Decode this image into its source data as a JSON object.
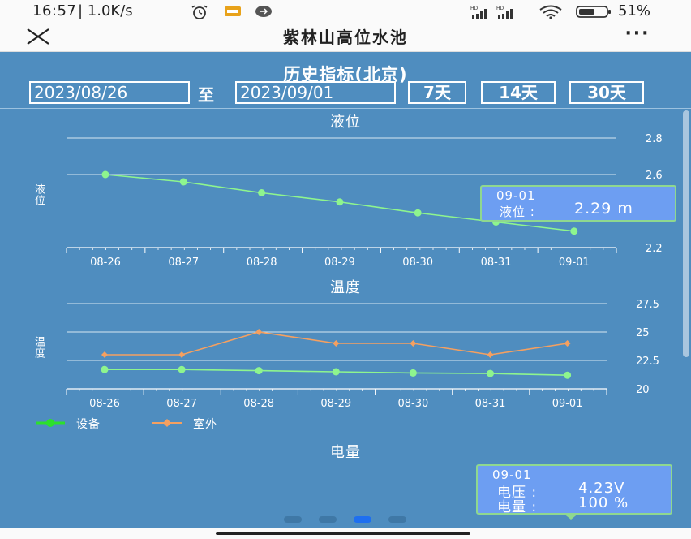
{
  "status_bar": {
    "time": "16:57",
    "net_speed": "| 1.0K/s",
    "battery_percent": "51%",
    "icons": [
      "alarm-icon",
      "notification-icon",
      "message-icon",
      "signal-hd-icon",
      "wifi-icon",
      "battery-icon"
    ],
    "hd1": "HD",
    "hd2": "HD"
  },
  "titlebar": {
    "title": "紫林山高位水池",
    "more_label": "···"
  },
  "history": {
    "title": "历史指标(北京)",
    "start_date": "2023/08/26",
    "separator": "至",
    "end_date": "2023/09/01",
    "range_buttons": [
      "7天",
      "14天",
      "30天"
    ]
  },
  "colors": {
    "background": "#4f8dbf",
    "device_series": "#8ef58e",
    "outdoor_series": "#f5a060",
    "tooltip_bg": "#6d9ef2",
    "tooltip_border": "#8fd88f",
    "active_dot": "#1e6ff0"
  },
  "chart_data": [
    {
      "type": "line",
      "title": "液位",
      "ylabel": "液位",
      "categories": [
        "08-26",
        "08-27",
        "08-28",
        "08-29",
        "08-30",
        "08-31",
        "09-01"
      ],
      "series": [
        {
          "values": [
            2.6,
            2.56,
            2.5,
            2.45,
            2.39,
            2.34,
            2.29
          ]
        }
      ],
      "y_ticks": [
        "2.8",
        "2.6",
        "2.2"
      ],
      "ylim": [
        2.2,
        2.8
      ],
      "grid": true,
      "tooltip": {
        "date": "09-01",
        "label": "液位 :",
        "value": "2.29 m"
      }
    },
    {
      "type": "line",
      "title": "温度",
      "ylabel": "温度",
      "categories": [
        "08-26",
        "08-27",
        "08-28",
        "08-29",
        "08-30",
        "08-31",
        "09-01"
      ],
      "series": [
        {
          "name": "设备",
          "values": [
            21.7,
            21.7,
            21.6,
            21.5,
            21.4,
            21.35,
            21.2
          ]
        },
        {
          "name": "室外",
          "values": [
            23,
            23,
            25,
            24,
            24,
            23,
            24
          ]
        }
      ],
      "y_ticks": [
        "27.5",
        "25",
        "22.5",
        "20"
      ],
      "ylim": [
        20,
        27.5
      ],
      "grid": true,
      "legend": "bottom-left"
    },
    {
      "type": "line",
      "title": "电量",
      "tooltip": {
        "date": "09-01",
        "voltage_label": "电压 :",
        "voltage_value": "4.23V",
        "power_label": "电量 :",
        "power_value": "100 %"
      }
    }
  ],
  "pager": {
    "count": 4,
    "active_index": 2
  }
}
